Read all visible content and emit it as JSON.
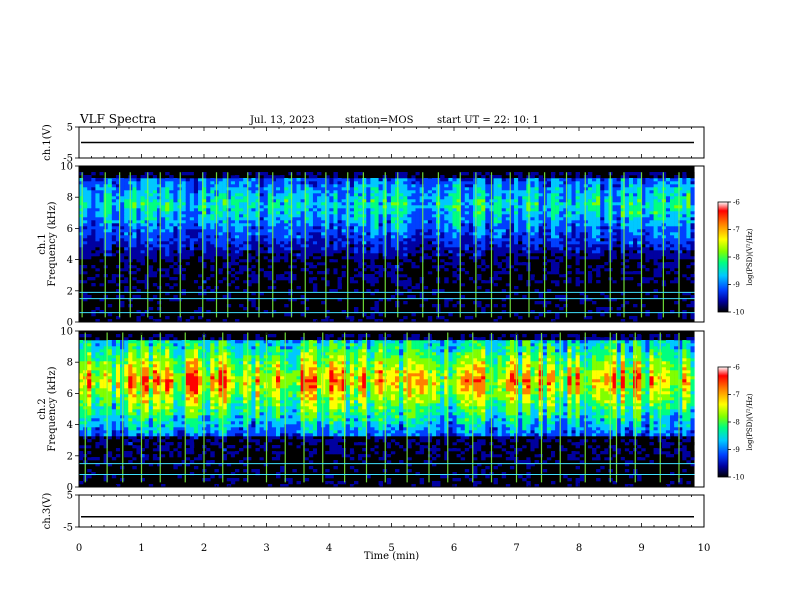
{
  "header": {
    "title": "VLF Spectra",
    "date": "Jul. 13, 2023",
    "station": "station=MOS",
    "start": "start UT =  22: 10: 1"
  },
  "colors": {
    "spectrogram_scale": [
      "#000000",
      "#0000a0",
      "#0040ff",
      "#00c8ff",
      "#00ff80",
      "#80ff00",
      "#ffff00",
      "#ff8000",
      "#ff0000",
      "#ffffff"
    ],
    "cyan_lines": "#40e0ff",
    "trace": "#000000"
  },
  "chart_data": [
    {
      "id": "ch1-waveform",
      "type": "line",
      "ylabel": "ch.1(V)",
      "yticks": [
        "5",
        "-5"
      ],
      "ylim": [
        -5,
        5
      ],
      "x": [
        0,
        10
      ],
      "values": [
        0,
        0
      ],
      "xlim": [
        0,
        10
      ]
    },
    {
      "id": "ch1-spectrogram",
      "type": "heatmap",
      "ylabel": "ch.1\nFrequency (kHz)",
      "yticks": [
        "0",
        "2",
        "4",
        "6",
        "8",
        "10"
      ],
      "ylim": [
        0,
        10
      ],
      "xlim": [
        0,
        10
      ],
      "data_end_min": 9.85,
      "band_khz": [
        4,
        9.2
      ],
      "band_peak_khz": 7.5,
      "band_intensity": 0.45,
      "cutoff_khz": 9.6,
      "horizontal_lines_khz": [
        0.6,
        1.5,
        1.9
      ],
      "spike_times_min": [
        0.05,
        0.42,
        0.65,
        0.82,
        1.1,
        1.3,
        1.62,
        1.98,
        2.2,
        2.38,
        2.7,
        2.88,
        3.1,
        3.4,
        3.62,
        3.95,
        4.3,
        4.55,
        4.9,
        5.1,
        5.5,
        5.75,
        6.1,
        6.35,
        6.6,
        6.9,
        7.2,
        7.45,
        7.8,
        8.1,
        8.5,
        8.72,
        9.0,
        9.35,
        9.6
      ],
      "colorbar": {
        "label": "log(PSD)(V²/Hz)",
        "ticks": [
          "-6",
          "-7",
          "-8",
          "-9",
          "-10"
        ],
        "range": [
          -10,
          -6
        ]
      }
    },
    {
      "id": "ch2-spectrogram",
      "type": "heatmap",
      "ylabel": "ch.2\nFrequency (kHz)",
      "yticks": [
        "0",
        "2",
        "4",
        "6",
        "8",
        "10"
      ],
      "ylim": [
        0,
        10
      ],
      "xlim": [
        0,
        10
      ],
      "data_end_min": 9.85,
      "band_khz": [
        3.2,
        9.5
      ],
      "band_peak_khz": 6.8,
      "band_intensity": 0.75,
      "cutoff_khz": 9.9,
      "horizontal_lines_khz": [
        0.8,
        1.5
      ],
      "spike_times_min": [
        0.1,
        0.45,
        0.7,
        1.0,
        1.3,
        1.7,
        2.0,
        2.3,
        2.7,
        3.0,
        3.3,
        3.6,
        3.9,
        4.25,
        4.6,
        4.9,
        5.25,
        5.6,
        5.9,
        6.3,
        6.6,
        7.0,
        7.4,
        7.7,
        8.1,
        8.5,
        8.6,
        8.9,
        9.3,
        9.6
      ],
      "colorbar": {
        "label": "log(PSD)(V²/Hz)",
        "ticks": [
          "-6",
          "-7",
          "-8",
          "-9",
          "-10"
        ],
        "range": [
          -10,
          -6
        ]
      }
    },
    {
      "id": "ch3-waveform",
      "type": "line",
      "ylabel": "ch.3(V)",
      "yticks": [
        "5",
        "-5"
      ],
      "ylim": [
        -5,
        5
      ],
      "x": [
        0,
        10
      ],
      "values": [
        -1.8,
        -1.8
      ],
      "xlim": [
        0,
        10
      ],
      "xticks": [
        "0",
        "1",
        "2",
        "3",
        "4",
        "5",
        "6",
        "7",
        "8",
        "9",
        "10"
      ],
      "xlabel": "Time (min)"
    }
  ]
}
